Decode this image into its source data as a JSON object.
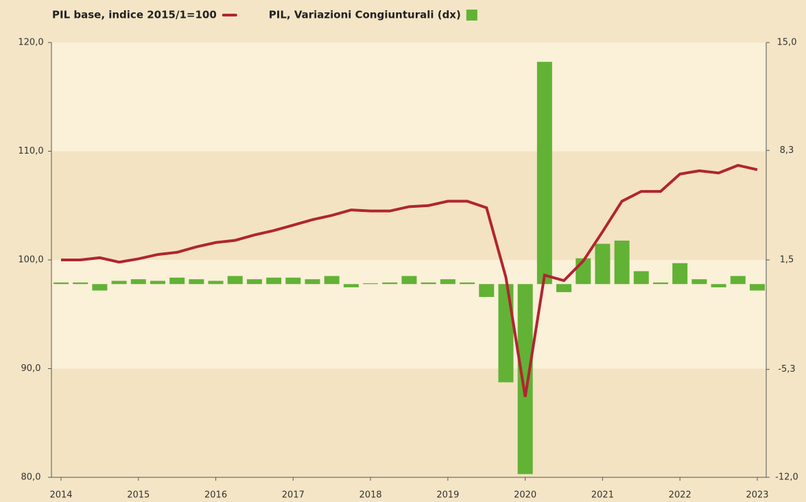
{
  "chart_data": {
    "type": "bar-line",
    "legend_position": "top",
    "categories": [
      "2014",
      null,
      null,
      null,
      "2015",
      null,
      null,
      null,
      "2016",
      null,
      null,
      null,
      "2017",
      null,
      null,
      null,
      "2018",
      null,
      null,
      null,
      "2019",
      null,
      null,
      null,
      "2020",
      null,
      null,
      null,
      "2021",
      null,
      null,
      null,
      "2022",
      null,
      null,
      null,
      "2023"
    ],
    "series": [
      {
        "name": "PIL base, indice 2015/1=100",
        "type": "line",
        "axis": "y",
        "color": "#b0252f",
        "values": [
          100.0,
          100.0,
          100.2,
          99.8,
          100.1,
          100.5,
          100.7,
          101.2,
          101.6,
          101.8,
          102.3,
          102.7,
          103.2,
          103.7,
          104.1,
          104.6,
          104.5,
          104.5,
          104.9,
          105.0,
          105.4,
          105.4,
          104.8,
          98.4,
          87.4,
          98.6,
          98.1,
          99.9,
          102.6,
          105.4,
          106.3,
          106.3,
          107.9,
          108.2,
          108.0,
          108.7,
          108.3
        ]
      },
      {
        "name": "PIL, Variazioni Congiunturali (dx)",
        "type": "bar",
        "axis": "y2",
        "color": "#62b236",
        "values": [
          0.1,
          0.1,
          -0.4,
          0.2,
          0.3,
          0.2,
          0.4,
          0.3,
          0.2,
          0.5,
          0.3,
          0.4,
          0.4,
          0.3,
          0.5,
          -0.2,
          0.05,
          0.1,
          0.5,
          0.1,
          0.3,
          0.1,
          -0.8,
          -6.1,
          -11.8,
          13.8,
          -0.5,
          1.6,
          2.5,
          2.7,
          0.8,
          0.1,
          1.3,
          0.3,
          -0.2,
          0.5,
          -0.4
        ]
      }
    ],
    "ylim": [
      80,
      120
    ],
    "yticks": [
      {
        "value": 80,
        "label": "80,0"
      },
      {
        "value": 90,
        "label": "90,0"
      },
      {
        "value": 100,
        "label": "100,0"
      },
      {
        "value": 110,
        "label": "110,0"
      },
      {
        "value": 120,
        "label": "120,0"
      }
    ],
    "y2lim": [
      -12,
      15
    ],
    "y2ticks": [
      {
        "value": -12,
        "label": "-12,0"
      },
      {
        "value": -5.3,
        "label": "-5,3"
      },
      {
        "value": 1.5,
        "label": "1,5"
      },
      {
        "value": 8.3,
        "label": "8,3"
      },
      {
        "value": 15,
        "label": "15,0"
      }
    ],
    "grid": "bands"
  }
}
